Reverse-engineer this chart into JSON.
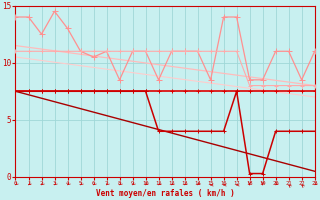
{
  "bg_color": "#c8f0f0",
  "grid_color": "#a0d8d8",
  "xlabel": "Vent moyen/en rafales ( km/h )",
  "ylim": [
    0,
    15
  ],
  "xlim": [
    0,
    23
  ],
  "yticks": [
    0,
    5,
    10,
    15
  ],
  "xtick_labels": [
    "0",
    "1",
    "2",
    "3",
    "4",
    "5",
    "6",
    "7",
    "8",
    "9",
    "10",
    "11",
    "12",
    "13",
    "14",
    "15",
    "16",
    "17",
    "18",
    "19",
    "20",
    "21",
    "22",
    "23"
  ],
  "series": [
    {
      "y": [
        14.0,
        14.0,
        12.5,
        14.5,
        13.0,
        11.0,
        10.5,
        11.0,
        8.5,
        11.0,
        11.0,
        8.5,
        11.0,
        11.0,
        11.0,
        8.5,
        14.0,
        14.0,
        8.5,
        8.5,
        11.0,
        11.0,
        8.5,
        11.0
      ],
      "color": "#ff9090",
      "marker": "+",
      "ms": 4,
      "lw": 0.9,
      "zorder": 3
    },
    {
      "y": [
        11.0,
        11.0,
        11.0,
        11.0,
        11.0,
        11.0,
        11.0,
        11.0,
        11.0,
        11.0,
        11.0,
        11.0,
        11.0,
        11.0,
        11.0,
        11.0,
        11.0,
        11.0,
        8.0,
        8.0,
        8.0,
        8.0,
        8.0,
        8.0
      ],
      "color": "#ffaaaa",
      "marker": "+",
      "ms": 3,
      "lw": 0.8,
      "zorder": 3
    },
    {
      "trend": true,
      "x": [
        0,
        23
      ],
      "y": [
        11.5,
        8.0
      ],
      "color": "#ffbbbb",
      "lw": 0.9,
      "zorder": 2
    },
    {
      "trend": true,
      "x": [
        0,
        23
      ],
      "y": [
        10.5,
        7.0
      ],
      "color": "#ffcccc",
      "lw": 0.8,
      "zorder": 2
    },
    {
      "y": [
        7.5,
        7.5,
        7.5,
        7.5,
        7.5,
        7.5,
        7.5,
        7.5,
        7.5,
        7.5,
        7.5,
        7.5,
        7.5,
        7.5,
        7.5,
        7.5,
        7.5,
        7.5,
        7.5,
        7.5,
        7.5,
        7.5,
        7.5,
        7.5
      ],
      "color": "#dd0000",
      "marker": "+",
      "ms": 3,
      "lw": 1.2,
      "zorder": 4
    },
    {
      "y": [
        7.5,
        7.5,
        7.5,
        7.5,
        7.5,
        7.5,
        7.5,
        7.5,
        7.5,
        7.5,
        7.5,
        4.0,
        4.0,
        4.0,
        4.0,
        4.0,
        4.0,
        7.5,
        0.3,
        0.3,
        4.0,
        4.0,
        4.0,
        4.0
      ],
      "color": "#cc0000",
      "marker": "+",
      "ms": 3,
      "lw": 1.1,
      "zorder": 4
    },
    {
      "trend": true,
      "x": [
        0,
        23
      ],
      "y": [
        7.5,
        0.5
      ],
      "color": "#aa0000",
      "lw": 1.0,
      "zorder": 2
    }
  ],
  "wind_dirs": [
    225,
    225,
    225,
    225,
    225,
    225,
    225,
    225,
    225,
    225,
    225,
    225,
    225,
    225,
    225,
    270,
    270,
    270,
    180,
    180,
    225,
    315,
    315,
    225
  ],
  "wind_color": "#cc0000",
  "ax_color": "#cc0000"
}
